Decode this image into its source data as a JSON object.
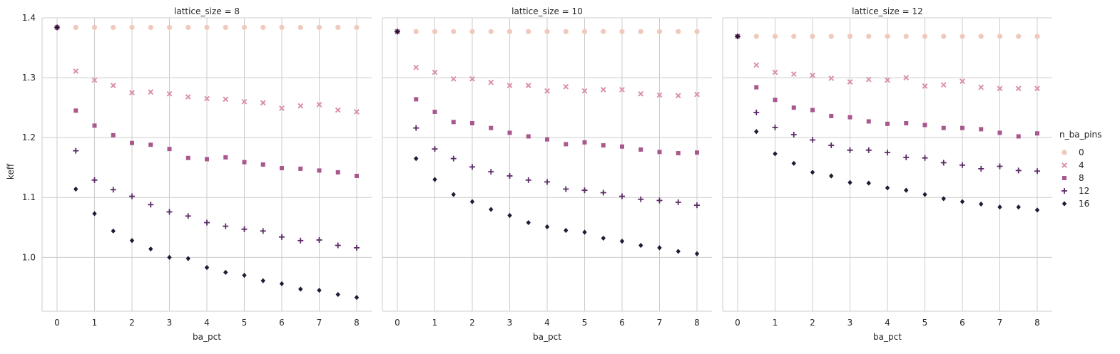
{
  "chart_data": {
    "type": "scatter",
    "facet_variable": "lattice_size",
    "x_variable": "ba_pct",
    "y_variable": "keff",
    "hue_variable": "n_ba_pins",
    "xlabel": "ba_pct",
    "ylabel": "keff",
    "xlim": [
      -0.4,
      8.4
    ],
    "ylim": [
      0.91,
      1.4
    ],
    "xticks": [
      "0",
      "1",
      "2",
      "3",
      "4",
      "5",
      "6",
      "7",
      "8"
    ],
    "yticks": [
      "1.0",
      "1.1",
      "1.2",
      "1.3",
      "1.4"
    ],
    "grid": true,
    "legend_position": "right",
    "legend_title": "n_ba_pins",
    "hue_levels": [
      {
        "label": "0",
        "marker": "circle",
        "color": "#f0c9bd"
      },
      {
        "label": "4",
        "marker": "x",
        "color": "#da8fa3"
      },
      {
        "label": "8",
        "marker": "square",
        "color": "#a9588d"
      },
      {
        "label": "12",
        "marker": "plus",
        "color": "#5c2b67"
      },
      {
        "label": "16",
        "marker": "diamond",
        "color": "#231a35"
      }
    ],
    "x": [
      0,
      0.5,
      1,
      1.5,
      2,
      2.5,
      3,
      3.5,
      4,
      4.5,
      5,
      5.5,
      6,
      6.5,
      7,
      7.5,
      8
    ],
    "facets": [
      {
        "title": "lattice_size = 8",
        "series": [
          {
            "name": "0",
            "values": [
              1.384,
              1.384,
              1.384,
              1.384,
              1.384,
              1.384,
              1.384,
              1.384,
              1.384,
              1.384,
              1.384,
              1.384,
              1.384,
              1.384,
              1.384,
              1.384,
              1.384
            ]
          },
          {
            "name": "4",
            "values": [
              1.384,
              1.311,
              1.296,
              1.287,
              1.275,
              1.276,
              1.273,
              1.268,
              1.265,
              1.264,
              1.26,
              1.258,
              1.249,
              1.253,
              1.255,
              1.246,
              1.243
            ]
          },
          {
            "name": "8",
            "values": [
              1.384,
              1.245,
              1.22,
              1.204,
              1.191,
              1.188,
              1.181,
              1.166,
              1.164,
              1.167,
              1.159,
              1.155,
              1.149,
              1.148,
              1.145,
              1.142,
              1.136
            ]
          },
          {
            "name": "12",
            "values": [
              1.384,
              1.178,
              1.129,
              1.113,
              1.102,
              1.088,
              1.076,
              1.069,
              1.058,
              1.052,
              1.047,
              1.044,
              1.034,
              1.028,
              1.029,
              1.02,
              1.016
            ]
          },
          {
            "name": "16",
            "values": [
              1.384,
              1.114,
              1.073,
              1.044,
              1.028,
              1.014,
              1.0,
              0.998,
              0.983,
              0.975,
              0.97,
              0.961,
              0.956,
              0.947,
              0.945,
              0.938,
              0.933
            ]
          }
        ]
      },
      {
        "title": "lattice_size = 10",
        "series": [
          {
            "name": "0",
            "values": [
              1.377,
              1.377,
              1.377,
              1.377,
              1.377,
              1.377,
              1.377,
              1.377,
              1.377,
              1.377,
              1.377,
              1.377,
              1.377,
              1.377,
              1.377,
              1.377,
              1.377
            ]
          },
          {
            "name": "4",
            "values": [
              1.377,
              1.317,
              1.309,
              1.298,
              1.298,
              1.292,
              1.287,
              1.287,
              1.278,
              1.285,
              1.278,
              1.28,
              1.28,
              1.273,
              1.271,
              1.27,
              1.272
            ]
          },
          {
            "name": "8",
            "values": [
              1.377,
              1.264,
              1.243,
              1.226,
              1.224,
              1.216,
              1.208,
              1.202,
              1.197,
              1.189,
              1.192,
              1.187,
              1.185,
              1.18,
              1.176,
              1.174,
              1.175
            ]
          },
          {
            "name": "12",
            "values": [
              1.377,
              1.216,
              1.181,
              1.165,
              1.151,
              1.143,
              1.136,
              1.129,
              1.126,
              1.114,
              1.112,
              1.108,
              1.102,
              1.097,
              1.095,
              1.092,
              1.087
            ]
          },
          {
            "name": "16",
            "values": [
              1.377,
              1.165,
              1.13,
              1.105,
              1.093,
              1.08,
              1.07,
              1.058,
              1.051,
              1.045,
              1.042,
              1.032,
              1.027,
              1.02,
              1.016,
              1.01,
              1.006
            ]
          }
        ]
      },
      {
        "title": "lattice_size = 12",
        "series": [
          {
            "name": "0",
            "values": [
              1.369,
              1.369,
              1.369,
              1.369,
              1.369,
              1.369,
              1.369,
              1.369,
              1.369,
              1.369,
              1.369,
              1.369,
              1.369,
              1.369,
              1.369,
              1.369,
              1.369
            ]
          },
          {
            "name": "4",
            "values": [
              1.369,
              1.321,
              1.309,
              1.306,
              1.304,
              1.299,
              1.293,
              1.297,
              1.296,
              1.3,
              1.286,
              1.288,
              1.294,
              1.284,
              1.282,
              1.282,
              1.282
            ]
          },
          {
            "name": "8",
            "values": [
              1.369,
              1.284,
              1.263,
              1.25,
              1.246,
              1.236,
              1.234,
              1.227,
              1.223,
              1.224,
              1.221,
              1.216,
              1.216,
              1.214,
              1.208,
              1.202,
              1.207
            ]
          },
          {
            "name": "12",
            "values": [
              1.369,
              1.242,
              1.217,
              1.205,
              1.196,
              1.187,
              1.179,
              1.179,
              1.175,
              1.167,
              1.166,
              1.158,
              1.154,
              1.148,
              1.152,
              1.145,
              1.144
            ]
          },
          {
            "name": "16",
            "values": [
              1.369,
              1.21,
              1.173,
              1.157,
              1.142,
              1.136,
              1.125,
              1.124,
              1.116,
              1.112,
              1.105,
              1.098,
              1.093,
              1.089,
              1.084,
              1.084,
              1.079
            ]
          }
        ]
      }
    ]
  }
}
